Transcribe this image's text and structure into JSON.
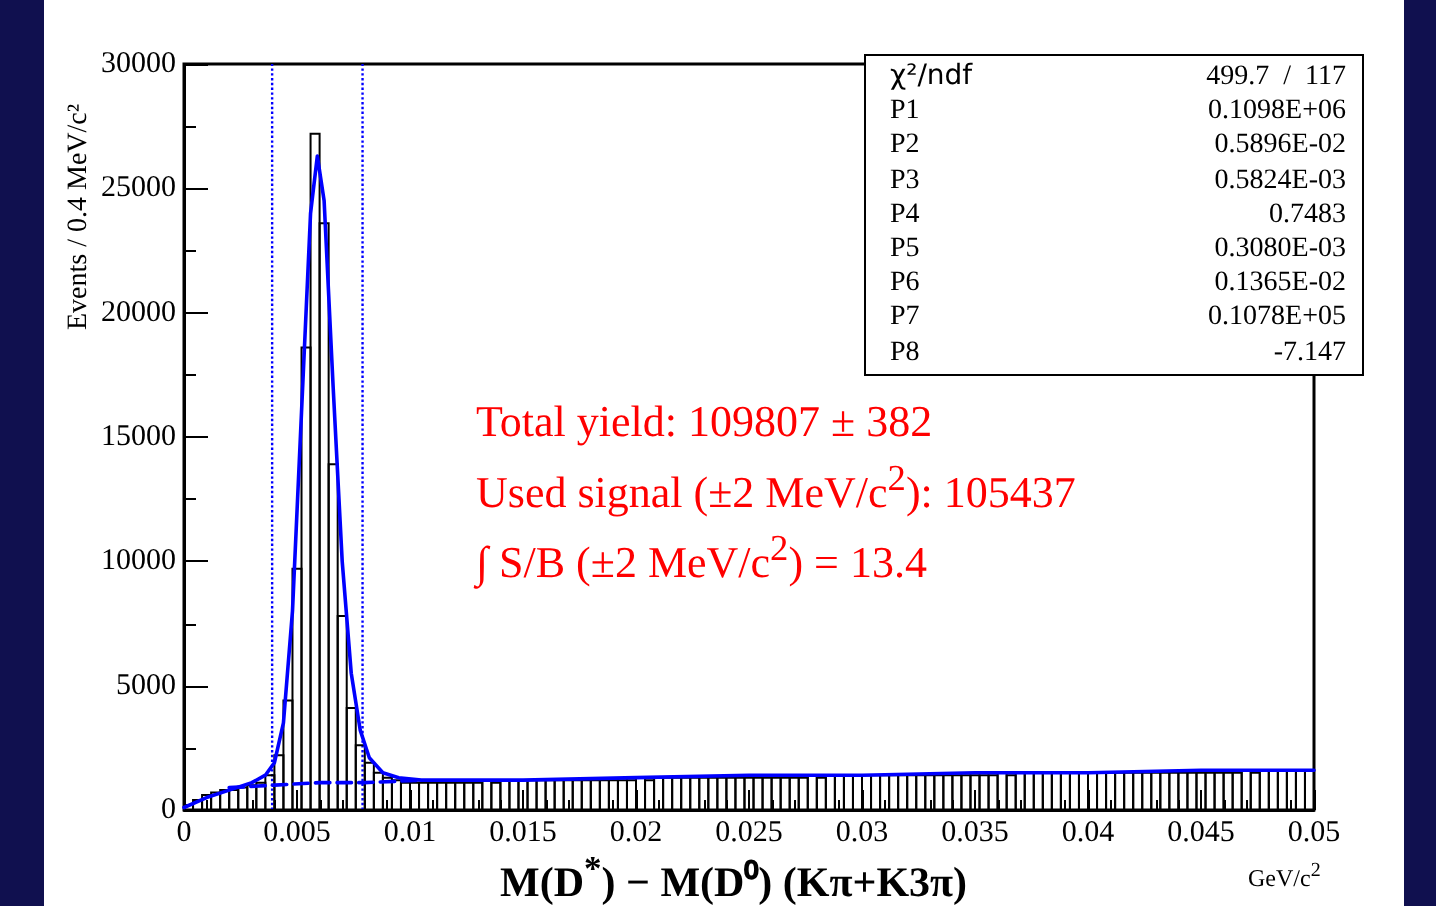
{
  "chart_data": {
    "type": "histogram",
    "xlabel": "M(D$^{*}$) − M(D⁰)   (Kπ+K3π)",
    "ylabel": "Events / 0.4 MeV/c²",
    "xlim": [
      0,
      0.05
    ],
    "xticks": [
      0,
      0.005,
      0.01,
      0.015,
      0.02,
      0.025,
      0.03,
      0.035,
      0.04,
      0.045,
      0.05
    ],
    "ylim": [
      0,
      30000
    ],
    "yticks": [
      0,
      5000,
      10000,
      15000,
      20000,
      25000,
      30000
    ],
    "grid": false,
    "series": [
      {
        "color": "#000000",
        "bins": [
          0,
          0.0004,
          0.0008,
          0.0012,
          0.0016,
          0.002,
          0.0024,
          0.0028,
          0.0032,
          0.0036,
          0.004,
          0.0044,
          0.0048,
          0.0052,
          0.0056,
          0.006,
          0.0064,
          0.0068,
          0.0072,
          0.0076,
          0.008,
          0.0084,
          0.0088,
          0.0092,
          0.0096,
          0.01,
          0.0104,
          0.0108,
          0.0112,
          0.0116,
          0.012,
          0.0124,
          0.0128,
          0.0132,
          0.0136,
          0.014,
          0.0144,
          0.0148,
          0.0152,
          0.0156,
          0.016,
          0.0164,
          0.0168,
          0.0172,
          0.0176,
          0.018,
          0.0184,
          0.0188,
          0.0192,
          0.0196,
          0.02,
          0.0204,
          0.0208,
          0.0212,
          0.0216,
          0.022,
          0.0224,
          0.0228,
          0.0232,
          0.0236,
          0.024,
          0.0244,
          0.0248,
          0.0252,
          0.0256,
          0.026,
          0.0264,
          0.0268,
          0.0272,
          0.0276,
          0.028,
          0.0284,
          0.0288,
          0.0292,
          0.0296,
          0.03,
          0.0304,
          0.0308,
          0.0312,
          0.0316,
          0.032,
          0.0324,
          0.0328,
          0.0332,
          0.0336,
          0.034,
          0.0344,
          0.0348,
          0.0352,
          0.0356,
          0.036,
          0.0364,
          0.0368,
          0.0372,
          0.0376,
          0.038,
          0.0384,
          0.0388,
          0.0392,
          0.0396,
          0.04,
          0.0404,
          0.0408,
          0.0412,
          0.0416,
          0.042,
          0.0424,
          0.0428,
          0.0432,
          0.0436,
          0.044,
          0.0444,
          0.0448,
          0.0452,
          0.0456,
          0.046,
          0.0464,
          0.0468,
          0.0472,
          0.0476,
          0.048,
          0.0484,
          0.0488,
          0.0492,
          0.0496,
          0.05
        ],
        "values": [
          200,
          400,
          600,
          700,
          800,
          800,
          900,
          1000,
          1100,
          1400,
          2200,
          4400,
          9700,
          18600,
          27200,
          23600,
          13900,
          7800,
          4100,
          2600,
          1900,
          1500,
          1300,
          1200,
          1100,
          1100,
          1100,
          1100,
          1100,
          1100,
          1100,
          1100,
          1100,
          1200,
          1100,
          1200,
          1200,
          1200,
          1200,
          1200,
          1200,
          1200,
          1200,
          1200,
          1200,
          1200,
          1200,
          1200,
          1200,
          1200,
          1300,
          1200,
          1300,
          1300,
          1300,
          1300,
          1300,
          1300,
          1300,
          1300,
          1300,
          1300,
          1300,
          1300,
          1300,
          1300,
          1300,
          1300,
          1300,
          1400,
          1300,
          1400,
          1400,
          1400,
          1400,
          1400,
          1400,
          1400,
          1400,
          1400,
          1400,
          1400,
          1400,
          1400,
          1400,
          1400,
          1400,
          1400,
          1400,
          1400,
          1500,
          1400,
          1500,
          1500,
          1500,
          1500,
          1500,
          1500,
          1500,
          1500,
          1500,
          1500,
          1500,
          1500,
          1500,
          1500,
          1500,
          1500,
          1500,
          1500,
          1500,
          1500,
          1500,
          1500,
          1500,
          1500,
          1500,
          1600,
          1500,
          1600,
          1600,
          1600,
          1600,
          1600,
          1600
        ]
      },
      {
        "type": "line",
        "color": "#0000ff",
        "line_style": "solid",
        "x": [
          0,
          0.001,
          0.002,
          0.003,
          0.0036,
          0.004,
          0.0044,
          0.0048,
          0.0052,
          0.0056,
          0.0059,
          0.0062,
          0.0066,
          0.007,
          0.0074,
          0.0078,
          0.0082,
          0.0088,
          0.0095,
          0.0105,
          0.015,
          0.02,
          0.025,
          0.03,
          0.035,
          0.04,
          0.045,
          0.05
        ],
        "values": [
          100,
          500,
          800,
          1100,
          1400,
          1900,
          3500,
          8000,
          16000,
          24000,
          26300,
          24500,
          17000,
          10000,
          5500,
          3200,
          2100,
          1500,
          1300,
          1200,
          1200,
          1300,
          1400,
          1400,
          1500,
          1500,
          1600,
          1600
        ]
      },
      {
        "type": "line",
        "color": "#0000ff",
        "line_style": "dashed",
        "x": [
          0.002,
          0.004,
          0.006,
          0.008,
          0.0105
        ],
        "values": [
          900,
          1000,
          1100,
          1100,
          1200
        ]
      }
    ],
    "ref_lines": [
      {
        "axis": "x",
        "value": 0.0039,
        "color": "#0000ff",
        "line_style": "dotted"
      },
      {
        "axis": "x",
        "value": 0.0079,
        "color": "#0000ff",
        "line_style": "dotted"
      }
    ],
    "annotations": [
      "χ²/ndf 499.7  /  117",
      "P1 0.1098E+06",
      "P2 0.5896E-02",
      "P3 0.5824E-03",
      "P4 0.7483",
      "P5 0.3080E-03",
      "P6 0.1365E-02",
      "P7 0.1078E+05",
      "P8 -7.147",
      "Total yield: 109807 ± 382",
      "Used signal (±2 MeV/c$^{2}$): 105437",
      "∫ S/B (±2 MeV/c$^{2}$) = 13.4",
      "GeV/c$^{2}$"
    ]
  }
}
